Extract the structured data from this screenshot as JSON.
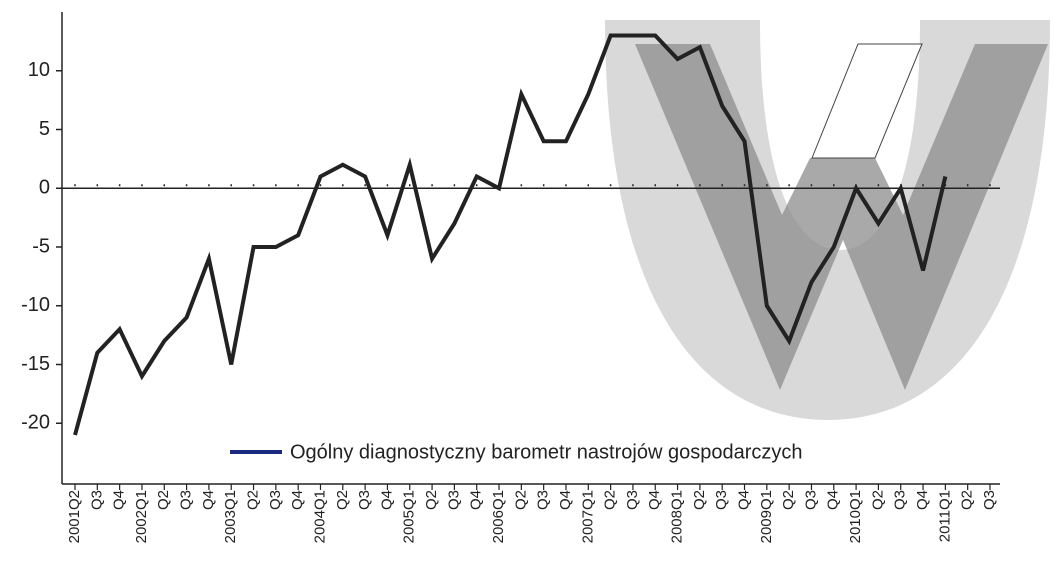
{
  "chart_data": {
    "type": "line",
    "categories": [
      "2001Q2",
      "Q3",
      "Q4",
      "2002Q1",
      "Q2",
      "Q3",
      "Q4",
      "2003Q1",
      "Q2",
      "Q3",
      "Q4",
      "2004Q1",
      "Q2",
      "Q3",
      "Q4",
      "2005Q1",
      "Q2",
      "Q3",
      "Q4",
      "2006Q1",
      "Q2",
      "Q3",
      "Q4",
      "2007Q1",
      "Q2",
      "Q3",
      "Q4",
      "2008Q1",
      "Q2",
      "Q3",
      "Q4",
      "2009Q1",
      "Q2",
      "Q3",
      "Q4",
      "2010Q1",
      "Q2",
      "Q3",
      "Q4",
      "2011Q1",
      "Q2",
      "Q3"
    ],
    "series": [
      {
        "name": "Ogólny diagnostyczny barometr nastrojów gospodarczych",
        "color": "#222222",
        "legend_color": "#1a2a80",
        "values": [
          -21,
          -14,
          -12,
          -16,
          -13,
          -11,
          -6,
          -15,
          -5,
          -5,
          -4,
          1,
          2,
          1,
          -4,
          2,
          -6,
          -3,
          1,
          0,
          8,
          4,
          4,
          8,
          13,
          13,
          13,
          11,
          12,
          7,
          4,
          -10,
          -13,
          -8,
          -5,
          0,
          -3,
          0,
          -7,
          1,
          null,
          null
        ]
      }
    ],
    "ylim": [
      -25,
      15
    ],
    "yticks": [
      -20,
      -15,
      -10,
      -5,
      0,
      5,
      10
    ],
    "grid": false
  }
}
